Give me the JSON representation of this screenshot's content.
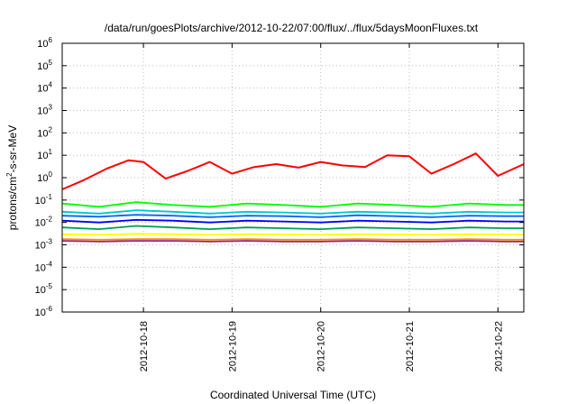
{
  "chart_data": {
    "type": "line",
    "title": "/data/run/goesPlots/archive/2012-10-22/07:00/flux/../flux/5daysMoonFluxes.txt",
    "xlabel": "Coordinated Universal Time (UTC)",
    "ylabel": {
      "prefix": "protons/cm",
      "sup": "2",
      "suffix": "-s-sr-MeV"
    },
    "y_scale": "log",
    "ylim": [
      1e-06,
      1000000.0
    ],
    "y_ticks": [
      {
        "value": 1e-06,
        "base": "10",
        "exp": "-6"
      },
      {
        "value": 1e-05,
        "base": "10",
        "exp": "-5"
      },
      {
        "value": 0.0001,
        "base": "10",
        "exp": "-4"
      },
      {
        "value": 0.001,
        "base": "10",
        "exp": "-3"
      },
      {
        "value": 0.01,
        "base": "10",
        "exp": "-2"
      },
      {
        "value": 0.1,
        "base": "10",
        "exp": "-1"
      },
      {
        "value": 1.0,
        "base": "10",
        "exp": "0"
      },
      {
        "value": 10.0,
        "base": "10",
        "exp": "1"
      },
      {
        "value": 100.0,
        "base": "10",
        "exp": "2"
      },
      {
        "value": 1000.0,
        "base": "10",
        "exp": "3"
      },
      {
        "value": 10000.0,
        "base": "10",
        "exp": "4"
      },
      {
        "value": 100000.0,
        "base": "10",
        "exp": "5"
      },
      {
        "value": 1000000.0,
        "base": "10",
        "exp": "6"
      }
    ],
    "x_range": [
      "2012-10-17T02:00",
      "2012-10-22T07:00"
    ],
    "x_ticks": [
      "2012-10-18",
      "2012-10-19",
      "2012-10-20",
      "2012-10-21",
      "2012-10-22"
    ],
    "grid": true,
    "legend": "none",
    "series": [
      {
        "color": "#ff0000",
        "x": [
          "2012-10-17T02:00",
          "2012-10-17T08:00",
          "2012-10-17T14:00",
          "2012-10-17T20:00",
          "2012-10-18T00:00",
          "2012-10-18T06:00",
          "2012-10-18T12:00",
          "2012-10-18T18:00",
          "2012-10-19T00:00",
          "2012-10-19T06:00",
          "2012-10-19T12:00",
          "2012-10-19T18:00",
          "2012-10-20T00:00",
          "2012-10-20T06:00",
          "2012-10-20T12:00",
          "2012-10-20T18:00",
          "2012-10-21T00:00",
          "2012-10-21T06:00",
          "2012-10-21T12:00",
          "2012-10-21T18:00",
          "2012-10-22T00:00",
          "2012-10-22T07:00"
        ],
        "values": [
          0.3,
          0.8,
          2.5,
          6,
          5,
          0.9,
          2,
          5,
          1.5,
          3,
          4,
          2.8,
          5,
          3.5,
          3,
          10,
          9,
          1.5,
          4,
          12,
          1.2,
          4
        ]
      },
      {
        "color": "#00ff00",
        "x": [
          "2012-10-17T02:00",
          "2012-10-17T12:00",
          "2012-10-17T22:00",
          "2012-10-18T08:00",
          "2012-10-18T18:00",
          "2012-10-19T04:00",
          "2012-10-19T14:00",
          "2012-10-20T00:00",
          "2012-10-20T10:00",
          "2012-10-20T20:00",
          "2012-10-21T06:00",
          "2012-10-21T16:00",
          "2012-10-22T02:00",
          "2012-10-22T07:00"
        ],
        "values": [
          0.07,
          0.05,
          0.08,
          0.06,
          0.05,
          0.07,
          0.06,
          0.05,
          0.07,
          0.06,
          0.05,
          0.07,
          0.06,
          0.06
        ]
      },
      {
        "color": "#00c8c8",
        "x": [
          "2012-10-17T02:00",
          "2012-10-17T12:00",
          "2012-10-17T22:00",
          "2012-10-18T08:00",
          "2012-10-18T18:00",
          "2012-10-19T04:00",
          "2012-10-19T14:00",
          "2012-10-20T00:00",
          "2012-10-20T10:00",
          "2012-10-20T20:00",
          "2012-10-21T06:00",
          "2012-10-21T16:00",
          "2012-10-22T02:00",
          "2012-10-22T07:00"
        ],
        "values": [
          0.03,
          0.025,
          0.035,
          0.03,
          0.025,
          0.03,
          0.028,
          0.025,
          0.03,
          0.028,
          0.025,
          0.03,
          0.028,
          0.028
        ]
      },
      {
        "color": "#0064ff",
        "x": [
          "2012-10-17T02:00",
          "2012-10-17T12:00",
          "2012-10-17T22:00",
          "2012-10-18T08:00",
          "2012-10-18T18:00",
          "2012-10-19T04:00",
          "2012-10-19T14:00",
          "2012-10-20T00:00",
          "2012-10-20T10:00",
          "2012-10-20T20:00",
          "2012-10-21T06:00",
          "2012-10-21T16:00",
          "2012-10-22T02:00",
          "2012-10-22T07:00"
        ],
        "values": [
          0.02,
          0.018,
          0.022,
          0.02,
          0.017,
          0.02,
          0.019,
          0.017,
          0.021,
          0.019,
          0.017,
          0.02,
          0.019,
          0.019
        ]
      },
      {
        "color": "#0000ff",
        "x": [
          "2012-10-17T02:00",
          "2012-10-17T12:00",
          "2012-10-17T22:00",
          "2012-10-18T08:00",
          "2012-10-18T18:00",
          "2012-10-19T04:00",
          "2012-10-19T14:00",
          "2012-10-20T00:00",
          "2012-10-20T10:00",
          "2012-10-20T20:00",
          "2012-10-21T06:00",
          "2012-10-21T16:00",
          "2012-10-22T02:00",
          "2012-10-22T07:00"
        ],
        "values": [
          0.012,
          0.01,
          0.013,
          0.012,
          0.01,
          0.012,
          0.011,
          0.01,
          0.012,
          0.011,
          0.01,
          0.012,
          0.011,
          0.011
        ]
      },
      {
        "color": "#00a050",
        "x": [
          "2012-10-17T02:00",
          "2012-10-17T12:00",
          "2012-10-17T22:00",
          "2012-10-18T08:00",
          "2012-10-18T18:00",
          "2012-10-19T04:00",
          "2012-10-19T14:00",
          "2012-10-20T00:00",
          "2012-10-20T10:00",
          "2012-10-20T20:00",
          "2012-10-21T06:00",
          "2012-10-21T16:00",
          "2012-10-22T02:00",
          "2012-10-22T07:00"
        ],
        "values": [
          0.006,
          0.005,
          0.007,
          0.006,
          0.005,
          0.006,
          0.0055,
          0.005,
          0.006,
          0.0055,
          0.005,
          0.006,
          0.0055,
          0.0055
        ]
      },
      {
        "color": "#ffff00",
        "x": [
          "2012-10-17T02:00",
          "2012-10-17T12:00",
          "2012-10-17T22:00",
          "2012-10-18T08:00",
          "2012-10-18T18:00",
          "2012-10-19T04:00",
          "2012-10-19T14:00",
          "2012-10-20T00:00",
          "2012-10-20T10:00",
          "2012-10-20T20:00",
          "2012-10-21T06:00",
          "2012-10-21T16:00",
          "2012-10-22T02:00",
          "2012-10-22T07:00"
        ],
        "values": [
          0.003,
          0.0028,
          0.0031,
          0.003,
          0.0028,
          0.003,
          0.0029,
          0.0028,
          0.003,
          0.0029,
          0.0028,
          0.003,
          0.0029,
          0.0029
        ]
      },
      {
        "color": "#ff8c00",
        "x": [
          "2012-10-17T02:00",
          "2012-10-17T12:00",
          "2012-10-17T22:00",
          "2012-10-18T08:00",
          "2012-10-18T18:00",
          "2012-10-19T04:00",
          "2012-10-19T14:00",
          "2012-10-20T00:00",
          "2012-10-20T10:00",
          "2012-10-20T20:00",
          "2012-10-21T06:00",
          "2012-10-21T16:00",
          "2012-10-22T02:00",
          "2012-10-22T07:00"
        ],
        "values": [
          0.0018,
          0.0017,
          0.0018,
          0.0018,
          0.0017,
          0.0018,
          0.0017,
          0.0017,
          0.0018,
          0.0017,
          0.0017,
          0.0018,
          0.0017,
          0.0017
        ]
      },
      {
        "color": "#8c288c",
        "x": [
          "2012-10-17T02:00",
          "2012-10-17T12:00",
          "2012-10-17T22:00",
          "2012-10-18T08:00",
          "2012-10-18T18:00",
          "2012-10-19T04:00",
          "2012-10-19T14:00",
          "2012-10-20T00:00",
          "2012-10-20T10:00",
          "2012-10-20T20:00",
          "2012-10-21T06:00",
          "2012-10-21T16:00",
          "2012-10-22T02:00",
          "2012-10-22T07:00"
        ],
        "values": [
          0.0015,
          0.0014,
          0.0015,
          0.0015,
          0.0014,
          0.0015,
          0.0014,
          0.0014,
          0.0015,
          0.0014,
          0.0014,
          0.0015,
          0.0014,
          0.0014
        ]
      }
    ]
  }
}
